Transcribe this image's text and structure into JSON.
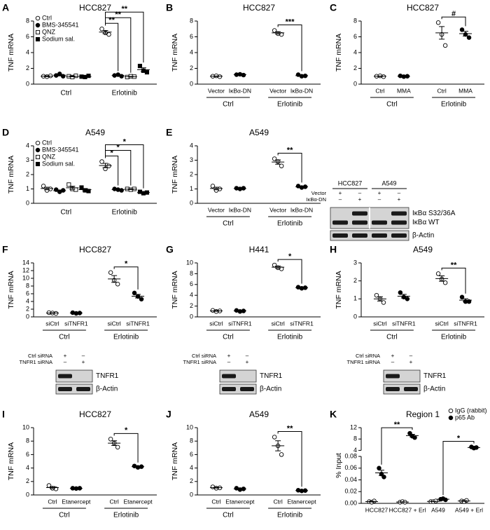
{
  "chart_data": [
    {
      "type": "dot",
      "panel": "A",
      "title": "HCC827",
      "ylabel": "TNF mRNA",
      "ylim": [
        0,
        8
      ],
      "yticks": [
        0,
        2,
        4,
        6,
        8
      ],
      "legend_position": "top-left",
      "legend": [
        {
          "name": "Ctrl",
          "marker": "open-circle"
        },
        {
          "name": "BMS-345541",
          "marker": "filled-circle"
        },
        {
          "name": "QNZ",
          "marker": "open-square"
        },
        {
          "name": "Sodium sal.",
          "marker": "filled-square"
        }
      ],
      "categories": [
        null,
        null,
        null,
        null,
        null,
        null,
        null,
        null
      ],
      "group_labels": [
        "Ctrl",
        "Erlotinib"
      ],
      "markers": [
        "open-circle",
        "filled-circle",
        "open-square",
        "filled-square",
        "open-circle",
        "filled-circle",
        "open-square",
        "filled-square"
      ],
      "points": [
        [
          1.0,
          0.95,
          1.05
        ],
        [
          1.1,
          1.3,
          1.0
        ],
        [
          1.0,
          0.9,
          1.05
        ],
        [
          0.95,
          0.9,
          1.05
        ],
        [
          7.0,
          6.5,
          6.3
        ],
        [
          1.1,
          1.2,
          1.0
        ],
        [
          0.9,
          1.0,
          0.95
        ],
        [
          2.3,
          1.7,
          1.5
        ]
      ],
      "means": [
        1.0,
        1.13,
        0.98,
        0.97,
        6.6,
        1.1,
        0.95,
        1.83
      ],
      "errors": [
        0.05,
        0.09,
        0.05,
        0.05,
        0.2,
        0.06,
        0.03,
        0.24
      ],
      "annotations": [
        {
          "text": "**",
          "from": 4,
          "to": 5
        },
        {
          "text": "**",
          "from": 4,
          "to": 6
        },
        {
          "text": "**",
          "from": 4,
          "to": 7
        }
      ]
    },
    {
      "type": "dot",
      "panel": "B",
      "title": "HCC827",
      "ylabel": "TNF mRNA",
      "ylim": [
        0,
        8
      ],
      "yticks": [
        0,
        2,
        4,
        6,
        8
      ],
      "categories": [
        "Vector",
        "IκBα-DN",
        "Vector",
        "IκBα-DN"
      ],
      "group_labels": [
        "Ctrl",
        "Erlotinib"
      ],
      "markers": [
        "open-circle",
        "filled-circle",
        "open-circle",
        "filled-circle"
      ],
      "points": [
        [
          1.0,
          1.05,
          0.95
        ],
        [
          1.2,
          1.25,
          1.15
        ],
        [
          6.8,
          6.4,
          6.3
        ],
        [
          1.2,
          1.0,
          1.05
        ]
      ],
      "means": [
        1.0,
        1.2,
        6.5,
        1.08
      ],
      "errors": [
        0.03,
        0.03,
        0.15,
        0.06
      ],
      "annotations": [
        {
          "text": "***",
          "from": 2,
          "to": 3
        }
      ]
    },
    {
      "type": "dot",
      "panel": "C",
      "title": "HCC827",
      "ylabel": "TNF mRNA",
      "ylim": [
        0,
        8
      ],
      "yticks": [
        0,
        2,
        4,
        6,
        8
      ],
      "categories": [
        "Ctrl",
        "MMA",
        "Ctrl",
        "MMA"
      ],
      "group_labels": [
        "Ctrl",
        "Erlotinib"
      ],
      "markers": [
        "open-circle",
        "filled-circle",
        "open-circle",
        "filled-circle"
      ],
      "points": [
        [
          1.0,
          1.05,
          0.95
        ],
        [
          1.05,
          0.95,
          1.0
        ],
        [
          7.8,
          6.3,
          4.9
        ],
        [
          6.9,
          6.3,
          5.9
        ]
      ],
      "means": [
        1.0,
        1.0,
        6.5,
        6.4
      ],
      "errors": [
        0.03,
        0.03,
        0.8,
        0.3
      ],
      "annotations": [
        {
          "text": "#",
          "from": 2,
          "to": 3
        }
      ]
    },
    {
      "type": "dot",
      "panel": "D",
      "title": "A549",
      "ylabel": "TNF mRNA",
      "ylim": [
        0,
        4
      ],
      "yticks": [
        0,
        1,
        2,
        3,
        4
      ],
      "legend_position": "top-left",
      "legend": [
        {
          "name": "Ctrl",
          "marker": "open-circle"
        },
        {
          "name": "BMS-345541",
          "marker": "filled-circle"
        },
        {
          "name": "QNZ",
          "marker": "open-square"
        },
        {
          "name": "Sodium sal.",
          "marker": "filled-square"
        }
      ],
      "categories": [
        null,
        null,
        null,
        null,
        null,
        null,
        null,
        null
      ],
      "group_labels": [
        "Ctrl",
        "Erlotinib"
      ],
      "markers": [
        "open-circle",
        "filled-circle",
        "open-square",
        "filled-square",
        "open-circle",
        "filled-circle",
        "open-square",
        "filled-square"
      ],
      "points": [
        [
          1.2,
          0.9,
          1.0
        ],
        [
          0.95,
          0.8,
          0.9
        ],
        [
          1.3,
          1.0,
          0.95
        ],
        [
          1.1,
          0.9,
          0.85
        ],
        [
          2.9,
          2.4,
          2.6
        ],
        [
          1.0,
          0.95,
          0.9
        ],
        [
          1.0,
          0.95,
          1.0
        ],
        [
          0.8,
          0.7,
          0.75
        ]
      ],
      "means": [
        1.03,
        0.88,
        1.08,
        0.95,
        2.63,
        0.95,
        0.98,
        0.75
      ],
      "errors": [
        0.09,
        0.04,
        0.11,
        0.08,
        0.15,
        0.03,
        0.02,
        0.03
      ],
      "annotations": [
        {
          "text": "*",
          "from": 4,
          "to": 5
        },
        {
          "text": "*",
          "from": 4,
          "to": 6
        },
        {
          "text": "*",
          "from": 4,
          "to": 7
        }
      ]
    },
    {
      "type": "dot",
      "panel": "E",
      "title": "A549",
      "ylabel": "TNF mRNA",
      "ylim": [
        0,
        4
      ],
      "yticks": [
        0,
        1,
        2,
        3,
        4
      ],
      "categories": [
        "Vector",
        "IκBα-DN",
        "Vector",
        "IκBα-DN"
      ],
      "group_labels": [
        "Ctrl",
        "Erlotinib"
      ],
      "markers": [
        "open-circle",
        "filled-circle",
        "open-circle",
        "filled-circle"
      ],
      "points": [
        [
          1.2,
          0.9,
          1.0
        ],
        [
          1.05,
          1.0,
          1.05
        ],
        [
          3.1,
          2.9,
          2.6
        ],
        [
          1.2,
          1.1,
          1.15
        ]
      ],
      "means": [
        1.03,
        1.03,
        2.87,
        1.15
      ],
      "errors": [
        0.09,
        0.02,
        0.15,
        0.03
      ],
      "annotations": [
        {
          "text": "**",
          "from": 2,
          "to": 3
        }
      ]
    },
    {
      "type": "dot",
      "panel": "F",
      "title": "HCC827",
      "ylabel": "TNF mRNA",
      "ylim": [
        0,
        14
      ],
      "yticks": [
        0,
        2,
        4,
        6,
        8,
        10,
        12,
        14
      ],
      "categories": [
        "siCtrl",
        "siTNFR1",
        "siCtrl",
        "siTNFR1"
      ],
      "group_labels": [
        "Ctrl",
        "Erlotinib"
      ],
      "markers": [
        "open-circle",
        "filled-circle",
        "open-circle",
        "filled-circle"
      ],
      "points": [
        [
          1.1,
          1.0,
          0.9
        ],
        [
          1.1,
          0.9,
          1.0
        ],
        [
          11.5,
          9.5,
          8.5
        ],
        [
          6.2,
          5.3,
          4.6
        ]
      ],
      "means": [
        1.0,
        1.0,
        9.83,
        5.37
      ],
      "errors": [
        0.06,
        0.06,
        0.88,
        0.46
      ],
      "annotations": [
        {
          "text": "*",
          "from": 2,
          "to": 3
        }
      ]
    },
    {
      "type": "dot",
      "panel": "G",
      "title": "H441",
      "ylabel": "TNF mRNA",
      "ylim": [
        0,
        10
      ],
      "yticks": [
        0,
        2,
        4,
        6,
        8,
        10
      ],
      "categories": [
        "siCtrl",
        "siTNFR1",
        "siCtrl",
        "siTNFR1"
      ],
      "group_labels": [
        "Ctrl",
        "Erlotinib"
      ],
      "markers": [
        "open-circle",
        "filled-circle",
        "open-circle",
        "filled-circle"
      ],
      "points": [
        [
          1.2,
          1.0,
          1.1
        ],
        [
          1.2,
          1.0,
          1.1
        ],
        [
          9.6,
          9.1,
          8.9
        ],
        [
          5.5,
          5.3,
          5.4
        ]
      ],
      "means": [
        1.1,
        1.1,
        9.2,
        5.4
      ],
      "errors": [
        0.06,
        0.06,
        0.21,
        0.06
      ],
      "annotations": [
        {
          "text": "*",
          "from": 2,
          "to": 3
        }
      ]
    },
    {
      "type": "dot",
      "panel": "H",
      "title": "A549",
      "ylabel": "TNF mRNA",
      "ylim": [
        0,
        3
      ],
      "yticks": [
        0,
        1,
        2,
        3
      ],
      "categories": [
        "siCtrl",
        "siTNFR1",
        "siCtrl",
        "siTNFR1"
      ],
      "group_labels": [
        "Ctrl",
        "Erlotinib"
      ],
      "markers": [
        "open-circle",
        "filled-circle",
        "open-circle",
        "filled-circle"
      ],
      "points": [
        [
          1.2,
          1.0,
          0.8
        ],
        [
          1.35,
          1.1,
          1.0
        ],
        [
          2.4,
          2.1,
          1.9
        ],
        [
          1.1,
          0.85,
          0.85
        ]
      ],
      "means": [
        1.0,
        1.15,
        2.13,
        0.93
      ],
      "errors": [
        0.12,
        0.1,
        0.15,
        0.08
      ],
      "annotations": [
        {
          "text": "**",
          "from": 2,
          "to": 3
        }
      ]
    },
    {
      "type": "dot",
      "panel": "I",
      "title": "HCC827",
      "ylabel": "TNF mRNA",
      "ylim": [
        0,
        10
      ],
      "yticks": [
        0,
        2,
        4,
        6,
        8,
        10
      ],
      "categories": [
        "Ctrl",
        "Etanercept",
        "Ctrl",
        "Etanercept"
      ],
      "group_labels": [
        "Ctrl",
        "Erlotinib"
      ],
      "markers": [
        "open-circle",
        "filled-circle",
        "open-circle",
        "filled-circle"
      ],
      "points": [
        [
          1.4,
          1.0,
          0.9
        ],
        [
          1.0,
          0.95,
          1.0
        ],
        [
          8.3,
          7.7,
          7.1
        ],
        [
          4.3,
          4.1,
          4.2
        ]
      ],
      "means": [
        1.1,
        0.98,
        7.7,
        4.2
      ],
      "errors": [
        0.15,
        0.02,
        0.35,
        0.06
      ],
      "annotations": [
        {
          "text": "*",
          "from": 2,
          "to": 3
        }
      ]
    },
    {
      "type": "dot",
      "panel": "J",
      "title": "A549",
      "ylabel": "TNF mRNA",
      "ylim": [
        0,
        10
      ],
      "yticks": [
        0,
        2,
        4,
        6,
        8,
        10
      ],
      "categories": [
        "Ctrl",
        "Etanercept",
        "Ctrl",
        "Etanercept"
      ],
      "group_labels": [
        "Ctrl",
        "Erlotinib"
      ],
      "markers": [
        "open-circle",
        "filled-circle",
        "open-circle",
        "filled-circle"
      ],
      "points": [
        [
          1.2,
          1.0,
          1.05
        ],
        [
          1.0,
          0.8,
          0.9
        ],
        [
          8.6,
          7.3,
          6.0
        ],
        [
          0.7,
          0.6,
          0.65
        ]
      ],
      "means": [
        1.08,
        0.9,
        7.3,
        0.65
      ],
      "errors": [
        0.06,
        0.06,
        0.75,
        0.03
      ],
      "annotations": [
        {
          "text": "**",
          "from": 2,
          "to": 3
        }
      ]
    },
    {
      "type": "dot",
      "panel": "K",
      "title": "Region 1",
      "ylabel": "% Input",
      "ylim": [
        0,
        12
      ],
      "ybreak": [
        0.08,
        4
      ],
      "yticks": [
        {
          "value": 0,
          "label": "0.00"
        },
        0.02,
        0.04,
        0.06,
        0.08,
        4,
        8,
        12
      ],
      "legend_position": "top-right",
      "legend": [
        {
          "name": "IgG (rabbit)",
          "marker": "open-circle"
        },
        {
          "name": "p65 Ab",
          "marker": "filled-circle"
        }
      ],
      "categories": [
        "HCC827",
        "HCC827 + Erl",
        "A549",
        "A549 + Erl"
      ],
      "markers": [
        "open-circle",
        "filled-circle",
        "open-circle",
        "filled-circle",
        "open-circle",
        "filled-circle",
        "open-circle",
        "filled-circle"
      ],
      "points": [
        [
          0.003,
          0.002,
          0.004
        ],
        [
          0.06,
          0.05,
          0.045
        ],
        [
          0.002,
          0.003,
          0.002
        ],
        [
          10,
          9,
          8.5
        ],
        [
          0.003,
          0.003,
          0.004
        ],
        [
          0.007,
          0.008,
          0.006
        ],
        [
          0.004,
          0.003,
          0.005
        ],
        [
          5.2,
          4.8,
          5.0
        ]
      ],
      "means": [
        0.003,
        0.052,
        0.0023,
        9.2,
        0.0033,
        0.007,
        0.004,
        5.0
      ],
      "errors": [
        0.0006,
        0.0045,
        0.0003,
        0.44,
        0.0003,
        0.0006,
        0.0006,
        0.12
      ],
      "annotations": [
        {
          "text": "**",
          "from": 1,
          "to": 3
        },
        {
          "text": "*",
          "from": 5,
          "to": 7
        }
      ]
    }
  ],
  "blots": [
    {
      "headers": [
        "HCC827",
        "A549"
      ],
      "conditions": [
        {
          "name": "Vector",
          "marks": [
            "+",
            "–",
            "+",
            "–"
          ]
        },
        {
          "name": "IκBα-DN",
          "marks": [
            "–",
            "+",
            "–",
            "+"
          ]
        }
      ],
      "bands": [
        "IκBα S32/36A",
        "IκBα WT",
        "β-Actin"
      ]
    },
    {
      "conditions": [
        {
          "name": "Ctrl siRNA",
          "marks": [
            "+",
            "–"
          ]
        },
        {
          "name": "TNFR1 siRNA",
          "marks": [
            "–",
            "+"
          ]
        }
      ],
      "bands": [
        "TNFR1",
        "β-Actin"
      ]
    },
    {
      "conditions": [
        {
          "name": "Ctrl siRNA",
          "marks": [
            "+",
            "–"
          ]
        },
        {
          "name": "TNFR1 siRNA",
          "marks": [
            "–",
            "+"
          ]
        }
      ],
      "bands": [
        "TNFR1",
        "β-Actin"
      ]
    },
    {
      "conditions": [
        {
          "name": "Ctrl siRNA",
          "marks": [
            "+",
            "–"
          ]
        },
        {
          "name": "TNFR1 siRNA",
          "marks": [
            "–",
            "+"
          ]
        }
      ],
      "bands": [
        "TNFR1",
        "β-Actin"
      ]
    }
  ]
}
